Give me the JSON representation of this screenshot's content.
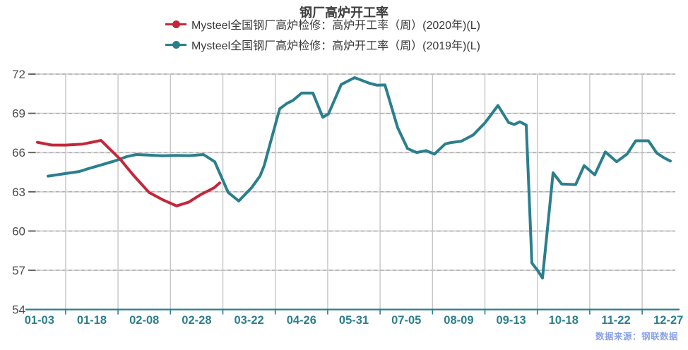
{
  "title": "钢厂高炉开工率",
  "legend": {
    "items": [
      {
        "label": "Mysteel全国钢厂高炉检修：高炉开工率（周）(2020年)(L)",
        "color": "#c2283a",
        "marker": "line-dot-icon"
      },
      {
        "label": "Mysteel全国钢厂高炉检修：高炉开工率（周）(2019年)(L)",
        "color": "#2b7f8d",
        "marker": "line-dot-icon"
      }
    ]
  },
  "source_note": "数据来源：钢联数据",
  "colors": {
    "series_2020": "#c2283a",
    "series_2019": "#2b7f8d",
    "axis_teal": "#2b7f8d",
    "title_text": "#3f3f3f",
    "legend_text": "#3a3a3a",
    "y_label": "#4c4c4c",
    "grid_light": "#d6d6d6",
    "grid_dash": "#9f9f9f",
    "grid_vertical": "#c6c6c6",
    "left_tick": "#5a5a5a",
    "source_text": "#8ba2e8",
    "background": "#ffffff"
  },
  "chart_data": {
    "type": "line",
    "title": "钢厂高炉开工率",
    "xlabel": "",
    "ylabel": "",
    "ylim": [
      54,
      72
    ],
    "yticks": [
      72,
      69,
      66,
      63,
      60,
      57,
      54
    ],
    "x_tick_labels": [
      "01-03",
      "01-18",
      "02-08",
      "02-28",
      "03-22",
      "04-26",
      "05-31",
      "07-05",
      "08-09",
      "09-13",
      "10-18",
      "11-22",
      "12-27"
    ],
    "grid": true,
    "legend_position": "top",
    "x_unit": "screenshot-px",
    "series": [
      {
        "name": "Mysteel全国钢厂高炉检修：高炉开工率（周）(2020年)(L)",
        "color": "#c2283a",
        "points": [
          [
            53,
            66.78
          ],
          [
            73,
            66.58
          ],
          [
            93,
            66.57
          ],
          [
            117,
            66.65
          ],
          [
            143,
            66.93
          ],
          [
            170,
            65.5
          ],
          [
            190,
            64.2
          ],
          [
            211,
            62.95
          ],
          [
            230,
            62.4
          ],
          [
            250,
            61.92
          ],
          [
            267,
            62.2
          ],
          [
            283,
            62.75
          ],
          [
            303,
            63.3
          ],
          [
            311,
            63.68
          ]
        ]
      },
      {
        "name": "Mysteel全国钢厂高炉检修：高炉开工率（周）(2019年)(L)",
        "color": "#2b7f8d",
        "points": [
          [
            68,
            64.2
          ],
          [
            93,
            64.4
          ],
          [
            112,
            64.55
          ],
          [
            127,
            64.8
          ],
          [
            143,
            65.05
          ],
          [
            162,
            65.35
          ],
          [
            180,
            65.7
          ],
          [
            193,
            65.85
          ],
          [
            212,
            65.8
          ],
          [
            230,
            65.75
          ],
          [
            250,
            65.78
          ],
          [
            268,
            65.76
          ],
          [
            288,
            65.85
          ],
          [
            304,
            65.3
          ],
          [
            323,
            62.95
          ],
          [
            338,
            62.3
          ],
          [
            356,
            63.3
          ],
          [
            368,
            64.2
          ],
          [
            374,
            65.0
          ],
          [
            383,
            66.8
          ],
          [
            396,
            69.35
          ],
          [
            406,
            69.75
          ],
          [
            415,
            70.0
          ],
          [
            427,
            70.55
          ],
          [
            443,
            70.55
          ],
          [
            457,
            68.7
          ],
          [
            465,
            68.95
          ],
          [
            483,
            71.2
          ],
          [
            502,
            71.73
          ],
          [
            523,
            71.3
          ],
          [
            534,
            71.15
          ],
          [
            545,
            71.17
          ],
          [
            563,
            67.9
          ],
          [
            577,
            66.3
          ],
          [
            590,
            66.0
          ],
          [
            603,
            66.15
          ],
          [
            615,
            65.88
          ],
          [
            630,
            66.65
          ],
          [
            637,
            66.75
          ],
          [
            653,
            66.87
          ],
          [
            670,
            67.35
          ],
          [
            687,
            68.3
          ],
          [
            705,
            69.6
          ],
          [
            720,
            68.3
          ],
          [
            728,
            68.15
          ],
          [
            736,
            68.35
          ],
          [
            745,
            68.1
          ],
          [
            753,
            57.55
          ],
          [
            761,
            57.0
          ],
          [
            768,
            56.4
          ],
          [
            783,
            64.45
          ],
          [
            795,
            63.6
          ],
          [
            815,
            63.55
          ],
          [
            827,
            65.0
          ],
          [
            842,
            64.3
          ],
          [
            857,
            66.05
          ],
          [
            873,
            65.3
          ],
          [
            888,
            65.9
          ],
          [
            900,
            66.9
          ],
          [
            918,
            66.9
          ],
          [
            930,
            65.95
          ],
          [
            940,
            65.6
          ],
          [
            949,
            65.35
          ]
        ]
      }
    ]
  }
}
